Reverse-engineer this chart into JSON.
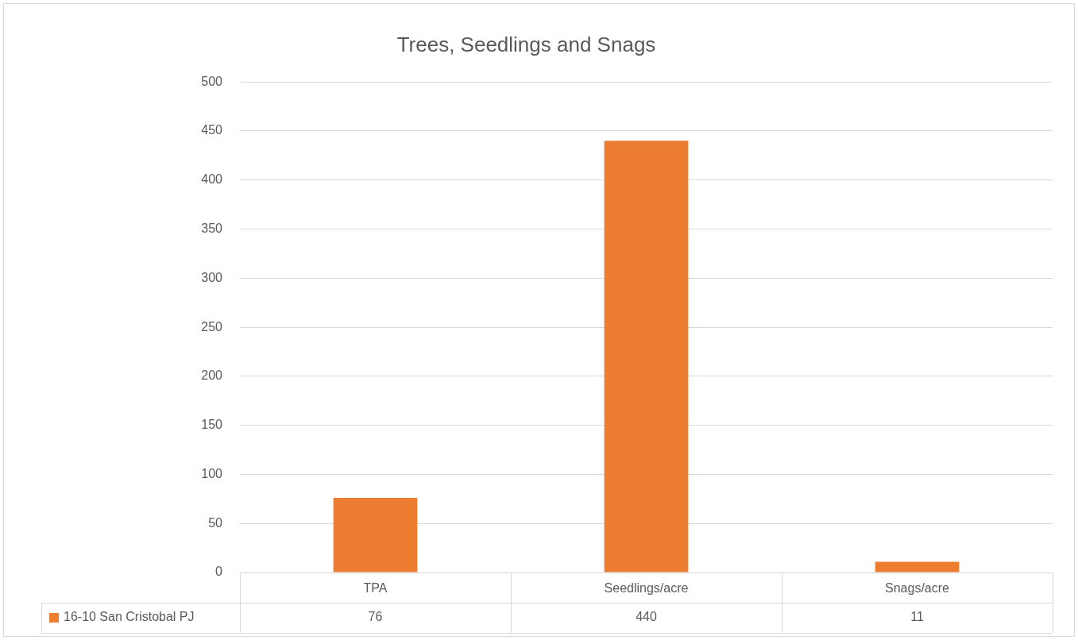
{
  "chart_data": {
    "type": "bar",
    "title": "Trees, Seedlings and Snags",
    "categories": [
      "TPA",
      "Seedlings/acre",
      "Snags/acre"
    ],
    "series": [
      {
        "name": "16-10 San Cristobal PJ",
        "color": "#ed7d31",
        "values": [
          76,
          440,
          11
        ]
      }
    ],
    "ylim": [
      0,
      500
    ],
    "yticks": [
      0,
      50,
      100,
      150,
      200,
      250,
      300,
      350,
      400,
      450,
      500
    ],
    "grid": "y",
    "legend": "bottom left",
    "data_labels": true
  }
}
